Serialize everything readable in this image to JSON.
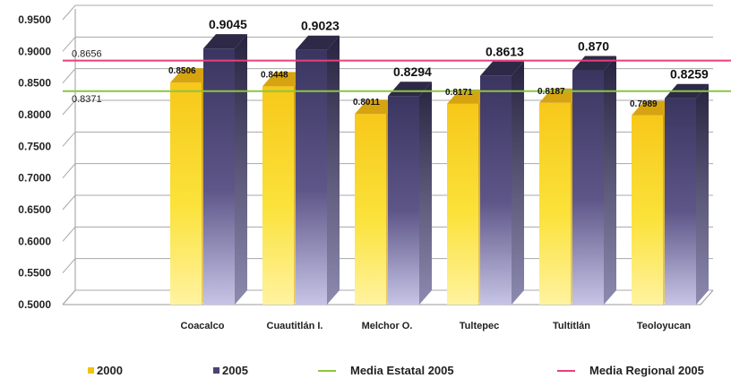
{
  "chart_data": {
    "type": "bar",
    "title": "",
    "xlabel": "",
    "ylabel": "",
    "categories": [
      "Coacalco",
      "Cuautitlán I.",
      "Melchor O.",
      "Tultepec",
      "Tultitlán",
      "Teoloyucan"
    ],
    "series": [
      {
        "name": "2000",
        "color": "#f3c20e",
        "values": [
          0.8506,
          0.8448,
          0.8011,
          0.8171,
          0.8187,
          0.7989
        ],
        "labels": [
          "0.8506",
          "0.8448",
          "0.8011",
          "0.8171",
          "0.8187",
          "0.7989"
        ]
      },
      {
        "name": "2005",
        "color": "#4a4470",
        "values": [
          0.9045,
          0.9023,
          0.8294,
          0.8613,
          0.87,
          0.8259
        ],
        "labels": [
          "0.9045",
          "0.9023",
          "0.8294",
          "0.8613",
          "0.870",
          "0.8259"
        ]
      }
    ],
    "reference_lines": [
      {
        "name": "Media Estatal 2005",
        "value": 0.8371,
        "label": "0.8371",
        "color": "#8cc63f"
      },
      {
        "name": "Media Regional 2005",
        "value": 0.8656,
        "label": "0.8656",
        "color": "#e8407a"
      }
    ],
    "ylim": [
      0.5,
      0.95
    ],
    "yticks": [
      "0.5000",
      "0.5500",
      "0.6000",
      "0.6500",
      "0.7000",
      "0.7500",
      "0.8000",
      "0.8500",
      "0.9000",
      "0.9500"
    ],
    "grid": true,
    "legend_position": "bottom"
  },
  "legend": {
    "items": [
      {
        "label": "2000",
        "kind": "box",
        "color": "#f3c20e"
      },
      {
        "label": "2005",
        "kind": "box",
        "color": "#4a4470"
      },
      {
        "label": "Media Estatal 2005",
        "kind": "line",
        "color": "#8cc63f"
      },
      {
        "label": "Media Regional 2005",
        "kind": "line",
        "color": "#e8407a"
      }
    ]
  }
}
